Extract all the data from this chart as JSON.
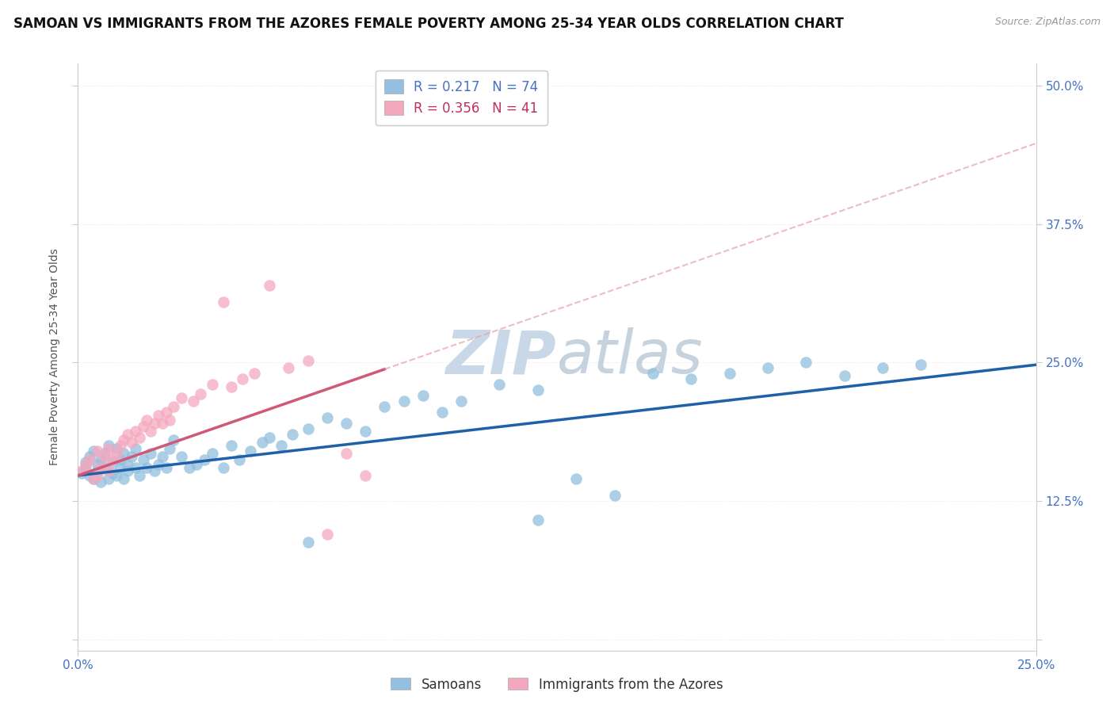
{
  "title": "SAMOAN VS IMMIGRANTS FROM THE AZORES FEMALE POVERTY AMONG 25-34 YEAR OLDS CORRELATION CHART",
  "source": "Source: ZipAtlas.com",
  "ylabel": "Female Poverty Among 25-34 Year Olds",
  "legend_entry1_r": "0.217",
  "legend_entry1_n": "74",
  "legend_entry2_r": "0.356",
  "legend_entry2_n": "41",
  "legend_label1": "Samoans",
  "legend_label2": "Immigrants from the Azores",
  "x_range": [
    0.0,
    0.25
  ],
  "y_range": [
    -0.01,
    0.52
  ],
  "y_ticks": [
    0.0,
    0.125,
    0.25,
    0.375,
    0.5
  ],
  "y_tick_labels": [
    "",
    "12.5%",
    "25.0%",
    "37.5%",
    "50.0%"
  ],
  "x_ticks": [
    0.0,
    0.25
  ],
  "x_tick_labels": [
    "0.0%",
    "25.0%"
  ],
  "color_blue_scatter": "#92c0de",
  "color_pink_scatter": "#f4a8be",
  "color_blue_line": "#2060a8",
  "color_pink_line": "#d05878",
  "color_pink_dashed": "#e8a0a8",
  "color_tick_label": "#4472c4",
  "watermark_color": "#c8d8e8",
  "background_color": "#ffffff",
  "grid_color": "#e8e8e8",
  "grid_style": "dotted",
  "title_fontsize": 12,
  "axis_label_fontsize": 10,
  "tick_fontsize": 11,
  "blue_intercept": 0.148,
  "blue_slope": 0.4,
  "pink_intercept": 0.148,
  "pink_slope": 1.2,
  "samoans_x": [
    0.001,
    0.002,
    0.002,
    0.003,
    0.003,
    0.004,
    0.004,
    0.005,
    0.005,
    0.006,
    0.006,
    0.007,
    0.007,
    0.008,
    0.008,
    0.009,
    0.009,
    0.01,
    0.01,
    0.011,
    0.011,
    0.012,
    0.012,
    0.013,
    0.013,
    0.014,
    0.015,
    0.015,
    0.016,
    0.017,
    0.018,
    0.019,
    0.02,
    0.021,
    0.022,
    0.023,
    0.024,
    0.025,
    0.027,
    0.029,
    0.031,
    0.033,
    0.035,
    0.038,
    0.04,
    0.042,
    0.045,
    0.048,
    0.05,
    0.053,
    0.056,
    0.06,
    0.065,
    0.07,
    0.075,
    0.08,
    0.085,
    0.09,
    0.095,
    0.1,
    0.11,
    0.12,
    0.13,
    0.14,
    0.15,
    0.16,
    0.17,
    0.18,
    0.19,
    0.2,
    0.21,
    0.22,
    0.12,
    0.06
  ],
  "samoans_y": [
    0.15,
    0.16,
    0.155,
    0.148,
    0.165,
    0.145,
    0.17,
    0.152,
    0.158,
    0.142,
    0.162,
    0.155,
    0.168,
    0.145,
    0.175,
    0.15,
    0.16,
    0.148,
    0.172,
    0.155,
    0.162,
    0.145,
    0.168,
    0.152,
    0.158,
    0.165,
    0.155,
    0.172,
    0.148,
    0.162,
    0.155,
    0.168,
    0.152,
    0.158,
    0.165,
    0.155,
    0.172,
    0.18,
    0.165,
    0.155,
    0.158,
    0.162,
    0.168,
    0.155,
    0.175,
    0.162,
    0.17,
    0.178,
    0.182,
    0.175,
    0.185,
    0.19,
    0.2,
    0.195,
    0.188,
    0.21,
    0.215,
    0.22,
    0.205,
    0.215,
    0.23,
    0.225,
    0.145,
    0.13,
    0.24,
    0.235,
    0.24,
    0.245,
    0.25,
    0.238,
    0.245,
    0.248,
    0.108,
    0.088
  ],
  "azores_x": [
    0.001,
    0.002,
    0.003,
    0.004,
    0.005,
    0.005,
    0.006,
    0.007,
    0.008,
    0.008,
    0.009,
    0.01,
    0.011,
    0.012,
    0.013,
    0.014,
    0.015,
    0.016,
    0.017,
    0.018,
    0.019,
    0.02,
    0.021,
    0.022,
    0.023,
    0.024,
    0.025,
    0.027,
    0.03,
    0.032,
    0.035,
    0.038,
    0.04,
    0.043,
    0.046,
    0.05,
    0.055,
    0.06,
    0.065,
    0.07,
    0.075
  ],
  "azores_y": [
    0.152,
    0.158,
    0.162,
    0.145,
    0.17,
    0.148,
    0.155,
    0.165,
    0.152,
    0.172,
    0.162,
    0.168,
    0.175,
    0.18,
    0.185,
    0.178,
    0.188,
    0.182,
    0.192,
    0.198,
    0.188,
    0.195,
    0.202,
    0.195,
    0.205,
    0.198,
    0.21,
    0.218,
    0.215,
    0.222,
    0.23,
    0.305,
    0.228,
    0.235,
    0.24,
    0.32,
    0.245,
    0.252,
    0.095,
    0.168,
    0.148
  ]
}
